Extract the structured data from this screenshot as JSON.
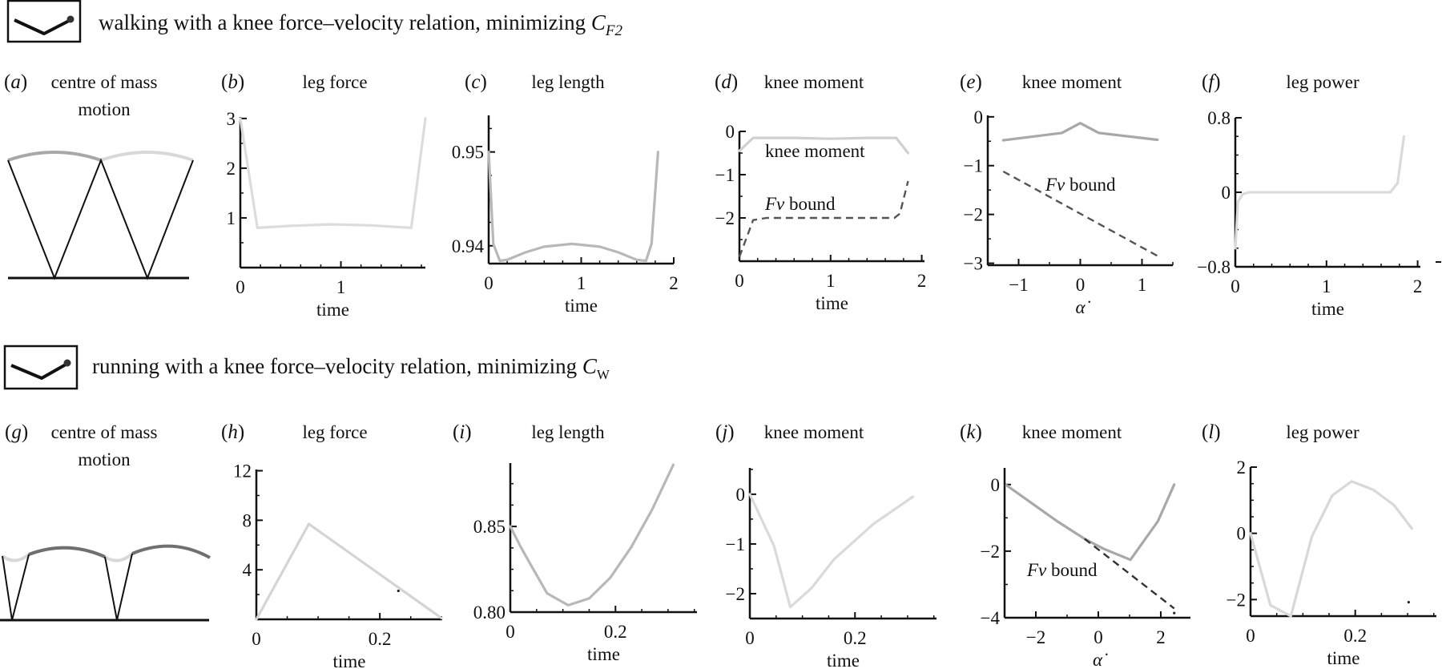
{
  "headers": [
    {
      "parts": [
        "walking with a knee force–velocity relation, minimizing ",
        "C",
        "F2"
      ],
      "icon": "bent-leg-icon"
    },
    {
      "parts": [
        "running with a knee force–velocity relation, minimizing ",
        "C",
        "W"
      ],
      "icon": "bent-leg-icon"
    }
  ],
  "colors": {
    "axis": "#111111",
    "bound": "#555555",
    "com_dark": "#707070",
    "com_light": "#d8d8d8"
  },
  "chart_data": [
    {
      "id": "a",
      "type": "diagram",
      "label_parts": [
        "(",
        "a",
        ")"
      ],
      "title": [
        "centre of mass",
        "motion"
      ]
    },
    {
      "id": "b",
      "type": "line",
      "label_parts": [
        "(",
        "b",
        ")"
      ],
      "title": [
        "leg force"
      ],
      "xlabel": "time",
      "xlim": [
        0,
        1.84
      ],
      "ylim": [
        0,
        3.03
      ],
      "xticks": [
        "0",
        "1"
      ],
      "yticks": [
        "3",
        "2",
        "1"
      ],
      "series": [
        {
          "name": "leg force",
          "color": "#dcdcdc",
          "dashed": false,
          "x": [
            0,
            0.17,
            0.5,
            0.9,
            1.3,
            1.7,
            1.84
          ],
          "y": [
            3,
            0.8,
            0.84,
            0.87,
            0.85,
            0.8,
            3
          ]
        }
      ]
    },
    {
      "id": "c",
      "type": "line",
      "label_parts": [
        "(",
        "c",
        ")"
      ],
      "title": [
        "leg length"
      ],
      "xlabel": "time",
      "xlim": [
        0,
        2
      ],
      "ylim": [
        0.9381,
        0.9539
      ],
      "xticks": [
        "0",
        "1",
        "2"
      ],
      "yticks": [
        "0.95",
        "0.94"
      ],
      "series": [
        {
          "name": "leg length",
          "color": "#b8b8b8",
          "dashed": false,
          "x": [
            0,
            0.05,
            0.12,
            0.2,
            0.4,
            0.6,
            0.9,
            1.2,
            1.4,
            1.6,
            1.7,
            1.76,
            1.83
          ],
          "y": [
            0.95,
            0.9402,
            0.9384,
            0.9385,
            0.9393,
            0.9399,
            0.9402,
            0.9399,
            0.9393,
            0.9385,
            0.9384,
            0.9402,
            0.95
          ]
        }
      ]
    },
    {
      "id": "d",
      "type": "line",
      "label_parts": [
        "(",
        "d",
        ")"
      ],
      "title": [
        "knee moment"
      ],
      "xlabel": "time",
      "xlim": [
        0,
        2.03
      ],
      "ylim": [
        -3,
        0
      ],
      "xticks": [
        "0",
        "1",
        "2"
      ],
      "yticks": [
        "0",
        "−1",
        "−2"
      ],
      "annotations": [
        [
          "knee moment"
        ],
        [
          "Fv",
          " bound"
        ]
      ],
      "series": [
        {
          "name": "knee moment",
          "color": "#d0d0d0",
          "dashed": false,
          "x": [
            0,
            0.15,
            0.6,
            1.0,
            1.4,
            1.72,
            1.85
          ],
          "y": [
            -0.45,
            -0.15,
            -0.15,
            -0.17,
            -0.15,
            -0.15,
            -0.5
          ]
        },
        {
          "name": "Fv bound",
          "color": "#555555",
          "dashed": true,
          "x": [
            0,
            0.15,
            0.3,
            1.0,
            1.7,
            1.76,
            1.85
          ],
          "y": [
            -2.9,
            -2.05,
            -2.0,
            -2.0,
            -2.0,
            -1.9,
            -1.15
          ]
        }
      ]
    },
    {
      "id": "e",
      "type": "line",
      "label_parts": [
        "(",
        "e",
        ")"
      ],
      "title": [
        "knee moment"
      ],
      "xlabel": "α̇",
      "xlim": [
        -1.5,
        1.5
      ],
      "ylim": [
        -3.04,
        0.03
      ],
      "xticks": [
        "−1",
        "0",
        "1"
      ],
      "yticks": [
        "0",
        "−1",
        "−2",
        "−3"
      ],
      "annotations": [
        [
          "Fv",
          " bound"
        ]
      ],
      "series": [
        {
          "name": "knee moment",
          "color": "#a8a8a8",
          "dashed": false,
          "x": [
            -1.25,
            -0.3,
            0,
            0.3,
            1.25
          ],
          "y": [
            -0.48,
            -0.33,
            -0.13,
            -0.33,
            -0.47
          ]
        },
        {
          "name": "Fv bound",
          "color": "#555555",
          "dashed": true,
          "x": [
            -1.25,
            1.25
          ],
          "y": [
            -1.12,
            -2.85
          ]
        }
      ]
    },
    {
      "id": "f",
      "type": "line",
      "label_parts": [
        "(",
        "f",
        ")"
      ],
      "title": [
        "leg power"
      ],
      "xlabel": "time",
      "xlim": [
        0,
        2.03
      ],
      "ylim": [
        -0.8,
        0.8
      ],
      "xticks": [
        "0",
        "1",
        "2"
      ],
      "yticks": [
        "0.8",
        "0",
        "−0.8"
      ],
      "series": [
        {
          "name": "leg power",
          "color": "#dadada",
          "dashed": false,
          "x": [
            0,
            0.03,
            0.08,
            0.15,
            1.0,
            1.7,
            1.78,
            1.85
          ],
          "y": [
            -0.6,
            -0.1,
            -0.02,
            0,
            0,
            0,
            0.1,
            0.6
          ]
        }
      ]
    },
    {
      "id": "g",
      "type": "diagram",
      "label_parts": [
        "(",
        "g",
        ")"
      ],
      "title": [
        "centre of mass",
        "motion"
      ]
    },
    {
      "id": "h",
      "type": "line",
      "label_parts": [
        "(",
        "h",
        ")"
      ],
      "title": [
        "leg force"
      ],
      "xlabel": "time",
      "xlim": [
        0,
        0.301
      ],
      "ylim": [
        0,
        12.1
      ],
      "xticks": [
        "0",
        "0.2"
      ],
      "yticks": [
        "12",
        "8",
        "4"
      ],
      "series": [
        {
          "name": "leg force",
          "color": "#d4d4d4",
          "dashed": false,
          "x": [
            0,
            0.085,
            0.3
          ],
          "y": [
            0,
            7.7,
            0.1
          ],
          "marks": [
            [
              0.23,
              2.3
            ]
          ]
        }
      ]
    },
    {
      "id": "i",
      "type": "line",
      "label_parts": [
        "(",
        "i",
        ")"
      ],
      "title": [
        "leg length"
      ],
      "xlabel": "time",
      "xlim": [
        0,
        0.355
      ],
      "ylim": [
        0.8,
        0.887
      ],
      "xticks": [
        "0",
        "0.2"
      ],
      "yticks": [
        "0.85",
        "0.80"
      ],
      "series": [
        {
          "name": "leg length",
          "color": "#b8b8b8",
          "dashed": false,
          "x": [
            0,
            0.02,
            0.04,
            0.07,
            0.11,
            0.15,
            0.19,
            0.23,
            0.27,
            0.31
          ],
          "y": [
            0.85,
            0.838,
            0.827,
            0.811,
            0.804,
            0.808,
            0.82,
            0.838,
            0.86,
            0.886
          ]
        }
      ]
    },
    {
      "id": "j",
      "type": "line",
      "label_parts": [
        "(",
        "j",
        ")"
      ],
      "title": [
        "knee moment"
      ],
      "xlabel": "time",
      "xlim": [
        0,
        0.355
      ],
      "ylim": [
        -2.5,
        0.53
      ],
      "xticks": [
        "0",
        "0.2"
      ],
      "yticks": [
        "0",
        "−1",
        "−2"
      ],
      "series": [
        {
          "name": "knee moment",
          "color": "#dadada",
          "dashed": false,
          "x": [
            0,
            0.046,
            0.077,
            0.117,
            0.16,
            0.235,
            0.31
          ],
          "y": [
            0,
            -1.04,
            -2.27,
            -1.89,
            -1.31,
            -0.6,
            -0.05
          ]
        }
      ]
    },
    {
      "id": "k",
      "type": "line",
      "label_parts": [
        "(",
        "k",
        ")"
      ],
      "title": [
        "knee moment"
      ],
      "xlabel": "α̇",
      "xlim": [
        -3,
        2.95
      ],
      "ylim": [
        -4,
        0.5
      ],
      "xticks": [
        "−2",
        "0",
        "2"
      ],
      "yticks": [
        "0",
        "−2",
        "−4"
      ],
      "annotations": [
        [
          "Fv",
          " bound"
        ]
      ],
      "series": [
        {
          "name": "knee moment",
          "color": "#a8a8a8",
          "dashed": false,
          "x": [
            -2.94,
            -1.32,
            -0.44,
            0.15,
            1.03,
            1.91,
            2.43
          ],
          "y": [
            -0.02,
            -1.1,
            -1.63,
            -1.92,
            -2.26,
            -1.1,
            0
          ]
        },
        {
          "name": "Fv bound",
          "color": "#333333",
          "dashed": true,
          "x": [
            -0.44,
            2.43
          ],
          "y": [
            -1.63,
            -3.72
          ],
          "marks": [
            [
              2.43,
              -3.86
            ]
          ]
        }
      ]
    },
    {
      "id": "l",
      "type": "line",
      "label_parts": [
        "(",
        "l",
        ")"
      ],
      "title": [
        "leg power"
      ],
      "xlabel": "time",
      "xlim": [
        0,
        0.355
      ],
      "ylim": [
        -2.5,
        2.0
      ],
      "xticks": [
        "0",
        "0.2"
      ],
      "yticks": [
        "2",
        "0",
        "−2"
      ],
      "series": [
        {
          "name": "leg power",
          "color": "#d8d8d8",
          "dashed": false,
          "x": [
            0,
            0.038,
            0.077,
            0.117,
            0.156,
            0.193,
            0.235,
            0.274,
            0.308
          ],
          "y": [
            0,
            -2.17,
            -2.5,
            -0.1,
            1.14,
            1.57,
            1.31,
            0.85,
            0.15
          ],
          "marks": [
            [
              0.302,
              -2.08
            ]
          ]
        }
      ]
    }
  ]
}
